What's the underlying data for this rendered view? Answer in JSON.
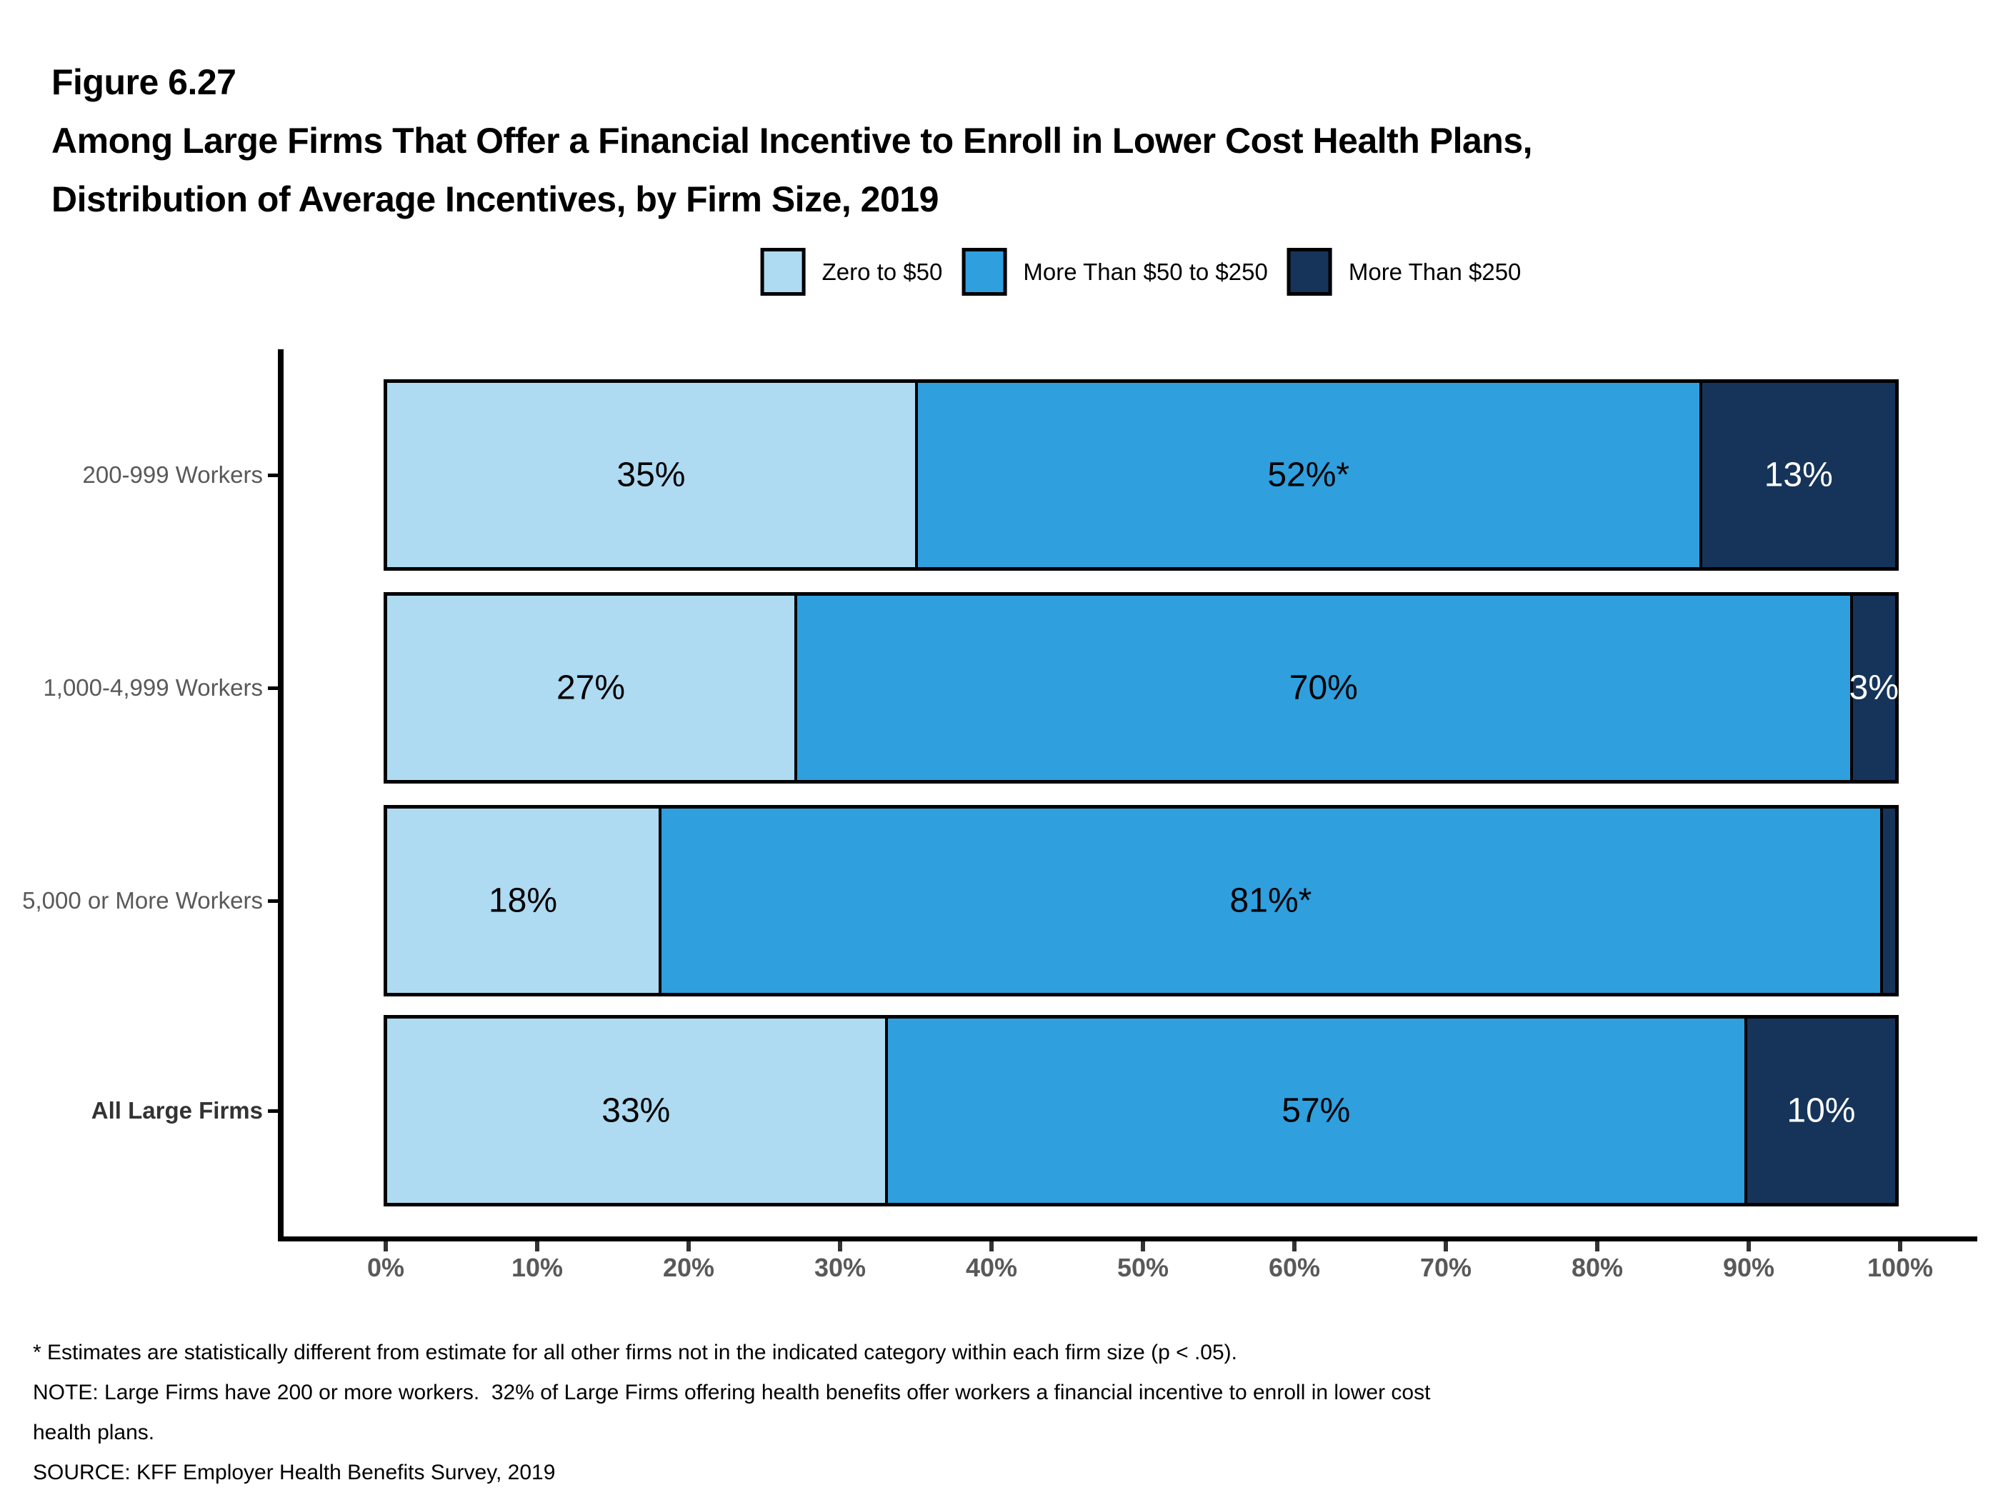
{
  "header": {
    "figure_label": "Figure 6.27",
    "title_lines": [
      "Among Large Firms That Offer a Financial Incentive to Enroll in Lower Cost Health Plans,",
      "Distribution of Average Incentives, by Firm Size, 2019"
    ]
  },
  "legend": {
    "items": [
      {
        "label": "Zero to $50",
        "color": "#AEDAF2"
      },
      {
        "label": "More Than $50 to $250",
        "color": "#2F9FDE"
      },
      {
        "label": "More Than $250",
        "color": "#16345A"
      }
    ]
  },
  "chart_data": {
    "type": "bar",
    "orientation": "horizontal",
    "stacked": true,
    "unit": "percent",
    "title": "Among Large Firms That Offer a Financial Incentive to Enroll in Lower Cost Health Plans, Distribution of Average Incentives, by Firm Size, 2019",
    "categories": [
      "200-999 Workers",
      "1,000-4,999 Workers",
      "5,000 or More Workers",
      "All Large Firms"
    ],
    "bold_categories": [
      "All Large Firms"
    ],
    "series": [
      {
        "name": "Zero to $50",
        "color": "#AEDAF2",
        "label_color": "#000000",
        "values": [
          35,
          27,
          18,
          33
        ]
      },
      {
        "name": "More Than $50 to $250",
        "color": "#2F9FDE",
        "label_color": "#000000",
        "values": [
          52,
          70,
          81,
          57
        ]
      },
      {
        "name": "More Than $250",
        "color": "#16345A",
        "label_color": "#FFFFFF",
        "values": [
          13,
          3,
          1,
          10
        ]
      }
    ],
    "bar_labels": [
      [
        "35%",
        "52%*",
        "13%"
      ],
      [
        "27%",
        "70%",
        "3%"
      ],
      [
        "18%",
        "81%*",
        ""
      ],
      [
        "33%",
        "57%",
        "10%"
      ]
    ],
    "x_tick_labels": [
      "0%",
      "10%",
      "20%",
      "30%",
      "40%",
      "50%",
      "60%",
      "70%",
      "80%",
      "90%",
      "100%"
    ],
    "xlim": [
      0,
      100
    ],
    "grid": false,
    "legend_position": "top"
  },
  "footnotes": {
    "lines": [
      "* Estimates are statistically different from estimate for all other firms not in the indicated category within each firm size (p < .05).",
      "NOTE: Large Firms have 200 or more workers.  32% of Large Firms offering health benefits offer workers a financial incentive to enroll in lower cost",
      "health plans.",
      "SOURCE: KFF Employer Health Benefits Survey, 2019"
    ]
  }
}
